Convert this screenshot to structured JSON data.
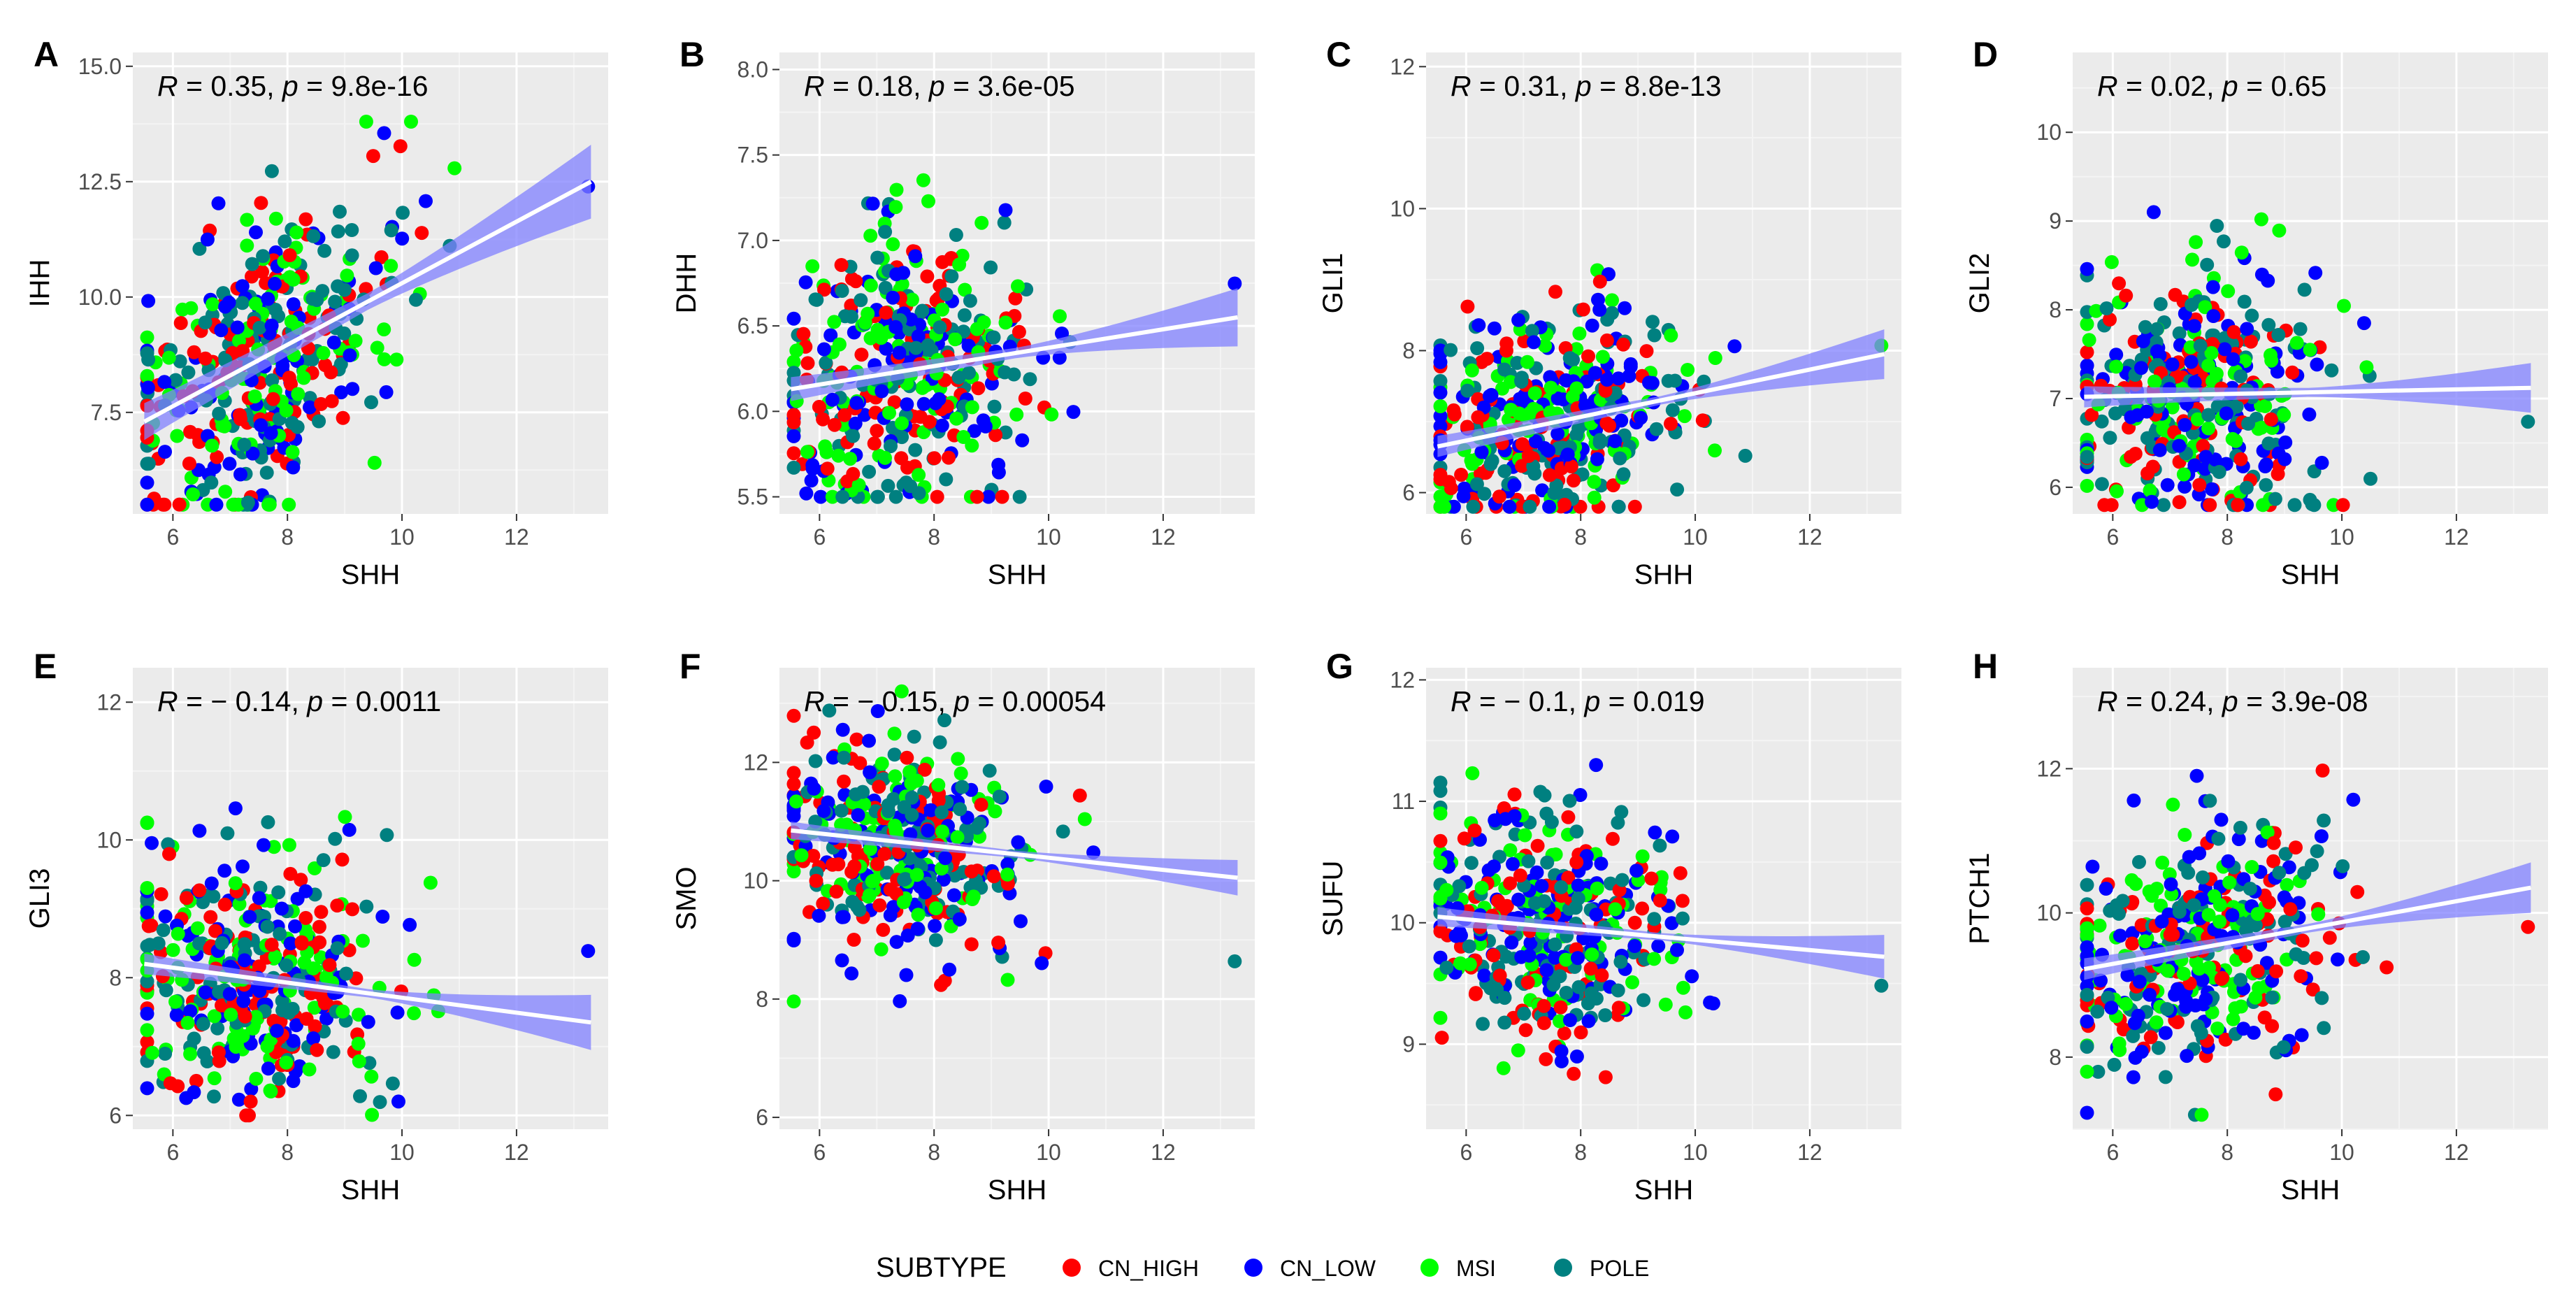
{
  "colors": {
    "panel_bg": "#ebebeb",
    "grid_major": "#ffffff",
    "grid_minor": "#f4f4f4",
    "tick": "#333333",
    "band": "#8080ff",
    "fit_line": "#ffffff"
  },
  "legend": {
    "title": "SUBTYPE",
    "items": [
      {
        "label": "CN_HIGH",
        "color": "#ff0000"
      },
      {
        "label": "CN_LOW",
        "color": "#0000ff"
      },
      {
        "label": "MSI",
        "color": "#00ff00"
      },
      {
        "label": "POLE",
        "color": "#008080"
      }
    ]
  },
  "chart_data": [
    {
      "type": "scatter",
      "letter": "A",
      "xlabel": "SHH",
      "ylabel": "IHH",
      "xlim": [
        5.3,
        13.6
      ],
      "ylim": [
        5.3,
        15.3
      ],
      "xticks": [
        6,
        8,
        10,
        12
      ],
      "yticks": [
        7.5,
        10.0,
        12.5,
        15.0
      ],
      "ytick_labels": [
        "7.5",
        "10.0",
        "12.5",
        "15.0"
      ],
      "y_focus": [
        5.5,
        13.8
      ],
      "spread": 1.6,
      "stats": {
        "r_value": "0.35",
        "p_value": "9.8e-16",
        "r_prefix": "R",
        "p_prefix": "p"
      },
      "fit": {
        "x0": 5.5,
        "y0": 7.3,
        "x1": 13.3,
        "y1": 12.5,
        "band0": 0.4,
        "band_mid": 0.18,
        "band1": 0.8
      }
    },
    {
      "type": "scatter",
      "letter": "B",
      "xlabel": "SHH",
      "ylabel": "DHH",
      "xlim": [
        5.3,
        13.6
      ],
      "ylim": [
        5.4,
        8.1
      ],
      "xticks": [
        6,
        8,
        10,
        12
      ],
      "yticks": [
        5.5,
        6.0,
        6.5,
        7.0,
        7.5,
        8.0
      ],
      "ytick_labels": [
        "5.5",
        "6.0",
        "6.5",
        "7.0",
        "7.5",
        "8.0"
      ],
      "y_focus": [
        5.5,
        7.6
      ],
      "spread": 0.42,
      "stats": {
        "r_value": "0.18",
        "p_value": "3.6e-05",
        "r_prefix": "R",
        "p_prefix": "p"
      },
      "fit": {
        "x0": 5.5,
        "y0": 6.13,
        "x1": 13.3,
        "y1": 6.55,
        "band0": 0.07,
        "band_mid": 0.03,
        "band1": 0.17
      }
    },
    {
      "type": "scatter",
      "letter": "C",
      "xlabel": "SHH",
      "ylabel": "GLI1",
      "xlim": [
        5.3,
        13.6
      ],
      "ylim": [
        5.7,
        12.2
      ],
      "xticks": [
        6,
        8,
        10,
        12
      ],
      "yticks": [
        6,
        8,
        10,
        12
      ],
      "ytick_labels": [
        "6",
        "8",
        "10",
        "12"
      ],
      "y_focus": [
        5.8,
        10.4
      ],
      "spread": 0.75,
      "stats": {
        "r_value": "0.31",
        "p_value": "8.8e-13",
        "r_prefix": "R",
        "p_prefix": "p"
      },
      "fit": {
        "x0": 5.5,
        "y0": 6.65,
        "x1": 13.3,
        "y1": 7.95,
        "band0": 0.15,
        "band_mid": 0.06,
        "band1": 0.35
      }
    },
    {
      "type": "scatter",
      "letter": "D",
      "xlabel": "SHH",
      "ylabel": "GLI2",
      "xlim": [
        5.3,
        13.6
      ],
      "ylim": [
        5.7,
        10.9
      ],
      "xticks": [
        6,
        8,
        10,
        12
      ],
      "yticks": [
        6,
        7,
        8,
        9,
        10
      ],
      "ytick_labels": [
        "6",
        "7",
        "8",
        "9",
        "10"
      ],
      "y_focus": [
        5.8,
        10.0
      ],
      "spread": 0.75,
      "stats": {
        "r_value": "0.02",
        "p_value": "0.65",
        "r_prefix": "R",
        "p_prefix": "p"
      },
      "fit": {
        "x0": 5.5,
        "y0": 7.02,
        "x1": 13.3,
        "y1": 7.12,
        "band0": 0.12,
        "band_mid": 0.05,
        "band1": 0.28
      }
    },
    {
      "type": "scatter",
      "letter": "E",
      "xlabel": "SHH",
      "ylabel": "GLI3",
      "xlim": [
        5.3,
        13.6
      ],
      "ylim": [
        5.8,
        12.5
      ],
      "xticks": [
        6,
        8,
        10,
        12
      ],
      "yticks": [
        6,
        8,
        10,
        12
      ],
      "ytick_labels": [
        "6",
        "8",
        "10",
        "12"
      ],
      "y_focus": [
        6.0,
        11.0
      ],
      "spread": 0.9,
      "stats": {
        "r_value": "− 0.14",
        "p_value": "0.0011",
        "r_prefix": "R",
        "p_prefix": "p"
      },
      "fit": {
        "x0": 5.5,
        "y0": 8.2,
        "x1": 13.3,
        "y1": 7.35,
        "band0": 0.15,
        "band_mid": 0.06,
        "band1": 0.4
      }
    },
    {
      "type": "scatter",
      "letter": "F",
      "xlabel": "SHH",
      "ylabel": "SMO",
      "xlim": [
        5.3,
        13.6
      ],
      "ylim": [
        5.8,
        13.6
      ],
      "xticks": [
        6,
        8,
        10,
        12
      ],
      "yticks": [
        6,
        8,
        10,
        12
      ],
      "ytick_labels": [
        "6",
        "8",
        "10",
        "12"
      ],
      "y_focus": [
        7.5,
        13.2
      ],
      "spread": 0.9,
      "stats": {
        "r_value": "− 0.15",
        "p_value": "0.00054",
        "r_prefix": "R",
        "p_prefix": "p"
      },
      "fit": {
        "x0": 5.5,
        "y0": 10.85,
        "x1": 13.3,
        "y1": 10.05,
        "band0": 0.15,
        "band_mid": 0.06,
        "band1": 0.3
      }
    },
    {
      "type": "scatter",
      "letter": "G",
      "xlabel": "SHH",
      "ylabel": "SUFU",
      "xlim": [
        5.3,
        13.6
      ],
      "ylim": [
        8.3,
        12.1
      ],
      "xticks": [
        6,
        8,
        10,
        12
      ],
      "yticks": [
        9,
        10,
        11,
        12
      ],
      "ytick_labels": [
        "9",
        "10",
        "11",
        "12"
      ],
      "y_focus": [
        8.5,
        11.6
      ],
      "spread": 0.5,
      "stats": {
        "r_value": "− 0.1",
        "p_value": "0.019",
        "r_prefix": "R",
        "p_prefix": "p"
      },
      "fit": {
        "x0": 5.5,
        "y0": 10.05,
        "x1": 13.3,
        "y1": 9.72,
        "band0": 0.08,
        "band_mid": 0.03,
        "band1": 0.18
      }
    },
    {
      "type": "scatter",
      "letter": "H",
      "xlabel": "SHH",
      "ylabel": "PTCH1",
      "xlim": [
        5.3,
        13.6
      ],
      "ylim": [
        7.0,
        13.4
      ],
      "xticks": [
        6,
        8,
        10,
        12
      ],
      "yticks": [
        8,
        10,
        12
      ],
      "ytick_labels": [
        "8",
        "10",
        "12"
      ],
      "y_focus": [
        7.2,
        12.5
      ],
      "spread": 0.85,
      "stats": {
        "r_value": "0.24",
        "p_value": "3.9e-08",
        "r_prefix": "R",
        "p_prefix": "p"
      },
      "fit": {
        "x0": 5.5,
        "y0": 9.22,
        "x1": 13.3,
        "y1": 10.35,
        "band0": 0.15,
        "band_mid": 0.06,
        "band1": 0.35
      }
    }
  ]
}
